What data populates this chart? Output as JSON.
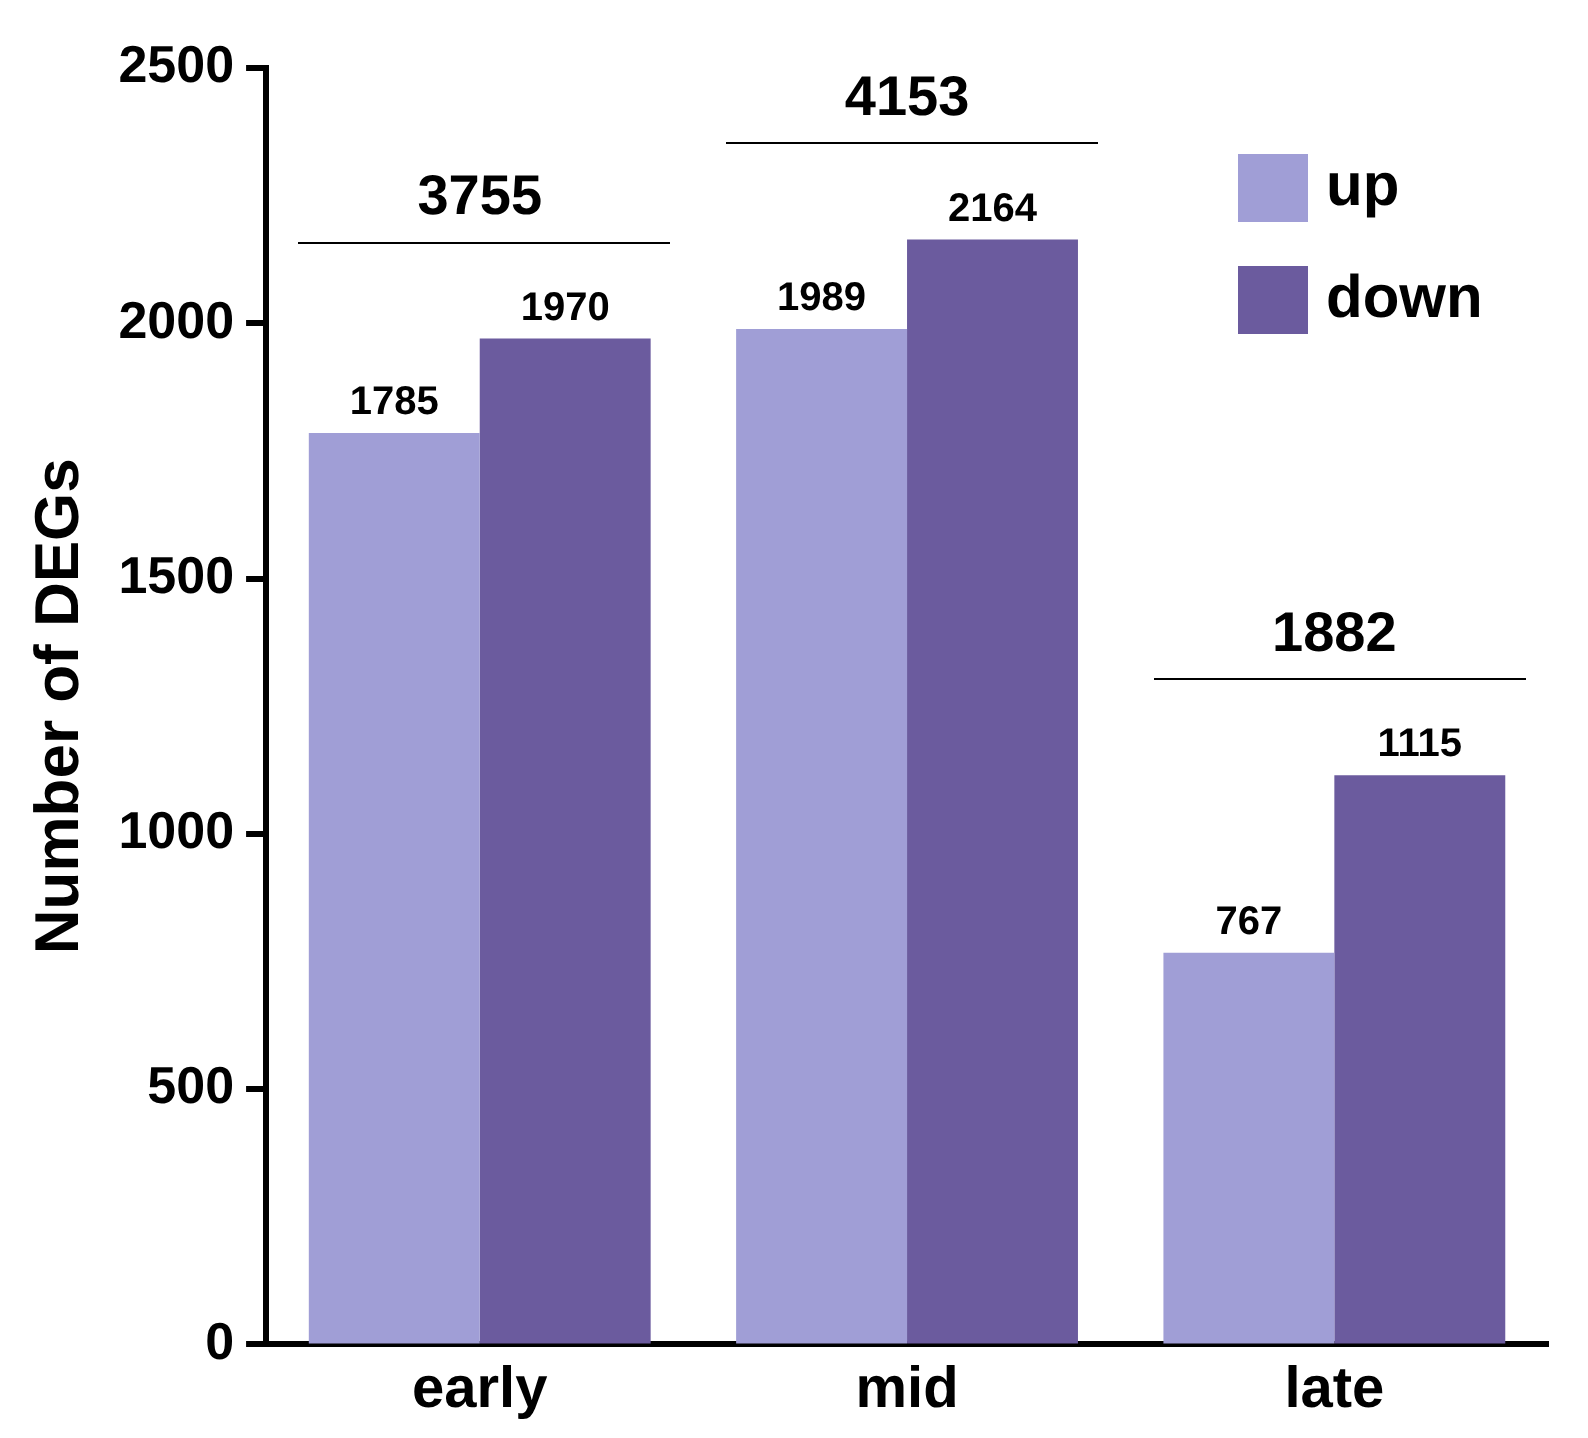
{
  "chart_data": {
    "type": "bar",
    "ylabel": "Number of DEGs",
    "categories": [
      "early",
      "mid",
      "late"
    ],
    "series": [
      {
        "name": "up",
        "color": "#a09ed6",
        "values": [
          1785,
          1989,
          767
        ]
      },
      {
        "name": "down",
        "color": "#6b5b9e",
        "values": [
          1970,
          2164,
          1115
        ]
      }
    ],
    "ylim": [
      0,
      2500
    ],
    "yticks": [
      0,
      500,
      1000,
      1500,
      2000,
      2500
    ],
    "grid": false,
    "legend": "top right",
    "data_labels": true,
    "totals": [
      "3755",
      "4153",
      "1882"
    ]
  }
}
